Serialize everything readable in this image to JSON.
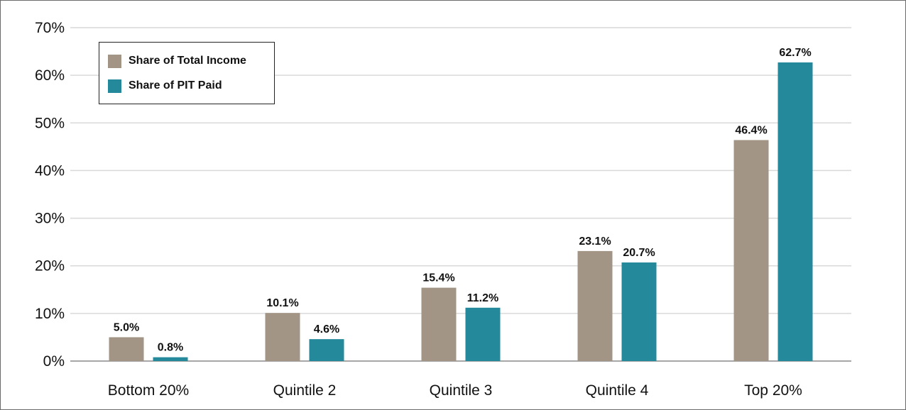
{
  "chart_data": {
    "type": "bar",
    "title": "",
    "xlabel": "",
    "ylabel": "",
    "categories": [
      "Bottom 20%",
      "Quintile 2",
      "Quintile 3",
      "Quintile 4",
      "Top 20%"
    ],
    "series": [
      {
        "name": "Share of Total Income",
        "color": "#a39585",
        "values": [
          5.0,
          10.1,
          15.4,
          23.1,
          46.4
        ],
        "labels": [
          "5.0%",
          "10.1%",
          "15.4%",
          "23.1%",
          "46.4%"
        ]
      },
      {
        "name": "Share of PIT Paid",
        "color": "#23899b",
        "values": [
          0.8,
          4.6,
          11.2,
          20.7,
          62.7
        ],
        "labels": [
          "0.8%",
          "4.6%",
          "11.2%",
          "20.7%",
          "62.7%"
        ]
      }
    ],
    "ylim": [
      0,
      70
    ],
    "yticks": [
      0,
      10,
      20,
      30,
      40,
      50,
      60,
      70
    ],
    "ytick_labels": [
      "0%",
      "10%",
      "20%",
      "30%",
      "40%",
      "50%",
      "60%",
      "70%"
    ],
    "grid": true,
    "legend": "top-left"
  }
}
